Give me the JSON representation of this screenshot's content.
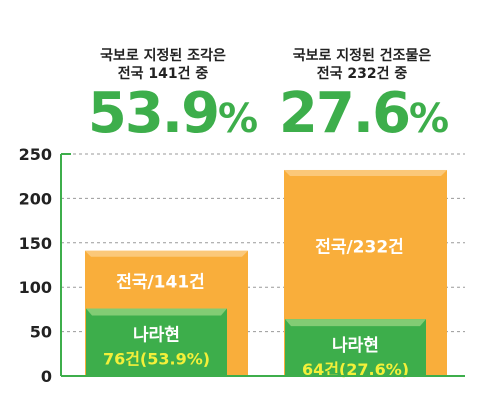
{
  "chart_data": {
    "type": "bar",
    "title": "",
    "xlabel": "",
    "ylabel": "",
    "ylim": [
      0,
      250
    ],
    "yticks": [
      0,
      50,
      100,
      150,
      200,
      250
    ],
    "grid": true,
    "groups": [
      {
        "header_lines": [
          "국보로 지정된 조각은",
          "전국 141건 중"
        ],
        "percent_value": "53.9",
        "percent_unit": "%",
        "total": 141,
        "total_label": "전국/141건",
        "part": 76,
        "part_name": "나라현",
        "part_label": "76건(53.9%)"
      },
      {
        "header_lines": [
          "국보로 지정된 건조물은",
          "전국 232건 중"
        ],
        "percent_value": "27.6",
        "percent_unit": "%",
        "total": 232,
        "total_label": "전국/232건",
        "part": 64,
        "part_name": "나라현",
        "part_label": "64건(27.6%)"
      }
    ]
  },
  "colors": {
    "total_bar": "#f9ae3b",
    "total_bar_top": "#fbc879",
    "part_bar": "#3dae4b",
    "part_bar_top": "#82cc74",
    "axis": "#3dae4b",
    "grid": "#9a9a9a",
    "percent_text": "#3dae4b",
    "part_label_text": "#f3f03a"
  }
}
